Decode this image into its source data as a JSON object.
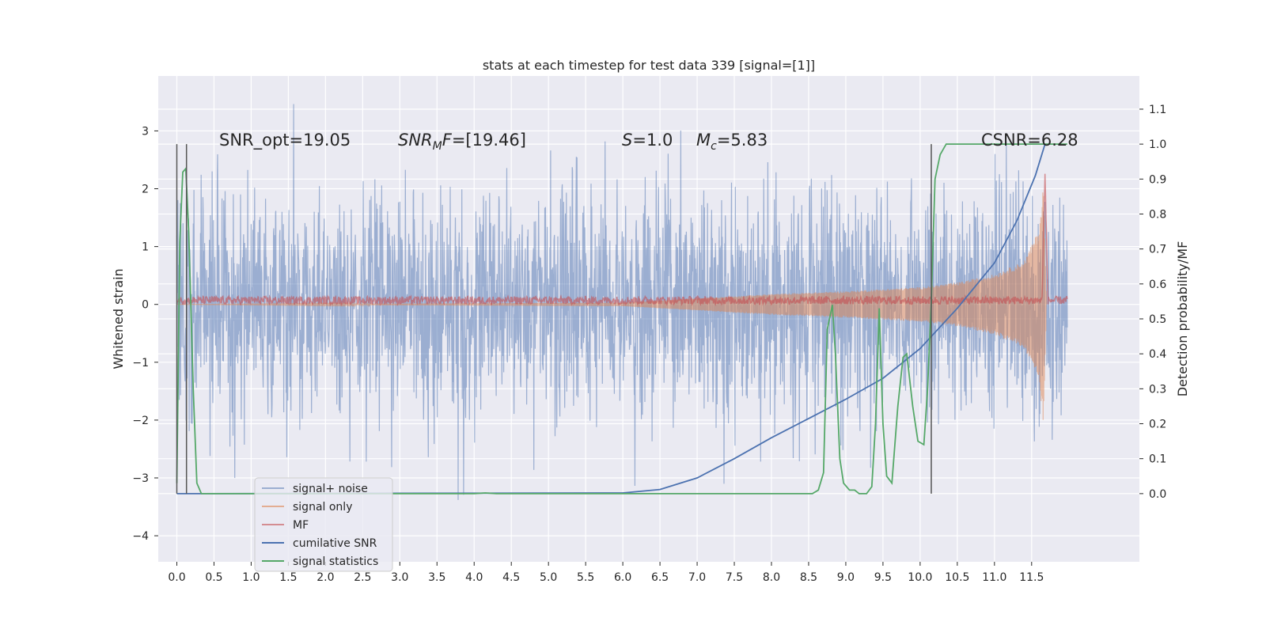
{
  "chart_data": {
    "type": "line",
    "title": "stats at each timestep for test data 339 [signal=[1]]",
    "xlabel": "",
    "ylabel": "Whitened strain",
    "y2label": "Detection probability/MF",
    "xlim": [
      -0.25,
      12.95
    ],
    "ylim": [
      -4.45,
      3.95
    ],
    "y2lim": [
      -0.195,
      1.195
    ],
    "x_ticks": [
      "0.0",
      "0.5",
      "1.0",
      "1.5",
      "2.0",
      "2.5",
      "3.0",
      "3.5",
      "4.0",
      "4.5",
      "5.0",
      "5.5",
      "6.0",
      "6.5",
      "7.0",
      "7.5",
      "8.0",
      "8.5",
      "9.0",
      "9.5",
      "10.0",
      "10.5",
      "11.0",
      "11.5"
    ],
    "y_ticks": [
      "−4",
      "−3",
      "−2",
      "−1",
      "0",
      "1",
      "2",
      "3"
    ],
    "y2_ticks": [
      "0.0",
      "0.1",
      "0.2",
      "0.3",
      "0.4",
      "0.5",
      "0.6",
      "0.7",
      "0.8",
      "0.9",
      "1.0",
      "1.1"
    ],
    "grid": true,
    "legend_position": "lower-left",
    "annotations": {
      "snr_opt": "SNR_opt=19.05",
      "snr_mf": "=[19.46]",
      "snr_mf_base": "SNR",
      "snr_mf_sub": "M",
      "snr_mf_tail": "F",
      "s_sym": "S",
      "s_val": "=1.0",
      "mc_sym": "M",
      "mc_sub": "c",
      "mc_val": "=5.83",
      "csnr": "CSNR=6.28"
    },
    "vertical_lines": [
      0.0,
      0.13,
      10.15
    ],
    "series": [
      {
        "name": "signal+ noise",
        "color": "#4c72b0",
        "alpha": 0.5,
        "axis": "left",
        "kind": "noise",
        "x_range": [
          0.0,
          11.98
        ],
        "amplitude": 1.0
      },
      {
        "name": "signal only",
        "color": "#dd8452",
        "alpha": 0.5,
        "axis": "left",
        "kind": "chirp",
        "x_range": [
          0.0,
          11.7
        ],
        "envelope": [
          [
            0.0,
            0.0
          ],
          [
            6.0,
            0.03
          ],
          [
            8.0,
            0.18
          ],
          [
            9.0,
            0.23
          ],
          [
            10.0,
            0.3
          ],
          [
            10.5,
            0.38
          ],
          [
            11.0,
            0.52
          ],
          [
            11.4,
            0.75
          ],
          [
            11.6,
            1.3
          ],
          [
            11.66,
            2.1
          ],
          [
            11.7,
            0.0
          ]
        ]
      },
      {
        "name": "MF",
        "color": "#c44e52",
        "alpha": 0.6,
        "axis": "left",
        "kind": "mf",
        "x_range": [
          0.0,
          11.98
        ],
        "center": 0.07,
        "spike_x": 11.68,
        "spike_y": 2.2
      },
      {
        "name": "cumilative SNR",
        "color": "#4c72b0",
        "alpha": 1.0,
        "axis": "right",
        "points": [
          [
            0.0,
            0.0
          ],
          [
            0.15,
            0.0
          ],
          [
            6.0,
            0.002
          ],
          [
            6.5,
            0.012
          ],
          [
            7.0,
            0.045
          ],
          [
            7.5,
            0.1
          ],
          [
            8.0,
            0.16
          ],
          [
            8.5,
            0.215
          ],
          [
            9.0,
            0.27
          ],
          [
            9.5,
            0.33
          ],
          [
            10.0,
            0.415
          ],
          [
            10.5,
            0.53
          ],
          [
            11.0,
            0.66
          ],
          [
            11.3,
            0.78
          ],
          [
            11.55,
            0.91
          ],
          [
            11.68,
            1.0
          ]
        ]
      },
      {
        "name": "signal statistics",
        "color": "#55a868",
        "alpha": 1.0,
        "axis": "right",
        "points": [
          [
            0.0,
            0.03
          ],
          [
            0.04,
            0.72
          ],
          [
            0.08,
            0.92
          ],
          [
            0.12,
            0.93
          ],
          [
            0.16,
            0.75
          ],
          [
            0.22,
            0.3
          ],
          [
            0.27,
            0.03
          ],
          [
            0.33,
            0.0
          ],
          [
            4.0,
            0.0
          ],
          [
            4.15,
            0.002
          ],
          [
            4.3,
            0.0
          ],
          [
            8.55,
            0.0
          ],
          [
            8.63,
            0.01
          ],
          [
            8.7,
            0.06
          ],
          [
            8.75,
            0.47
          ],
          [
            8.82,
            0.54
          ],
          [
            8.86,
            0.4
          ],
          [
            8.92,
            0.1
          ],
          [
            8.97,
            0.03
          ],
          [
            9.05,
            0.01
          ],
          [
            9.12,
            0.01
          ],
          [
            9.18,
            0.0
          ],
          [
            9.28,
            0.0
          ],
          [
            9.35,
            0.02
          ],
          [
            9.4,
            0.2
          ],
          [
            9.45,
            0.53
          ],
          [
            9.5,
            0.2
          ],
          [
            9.55,
            0.05
          ],
          [
            9.62,
            0.03
          ],
          [
            9.7,
            0.25
          ],
          [
            9.77,
            0.39
          ],
          [
            9.82,
            0.4
          ],
          [
            9.9,
            0.25
          ],
          [
            9.97,
            0.15
          ],
          [
            10.05,
            0.14
          ],
          [
            10.1,
            0.3
          ],
          [
            10.15,
            0.55
          ],
          [
            10.2,
            0.9
          ],
          [
            10.27,
            0.97
          ],
          [
            10.35,
            1.0
          ],
          [
            11.98,
            1.0
          ]
        ]
      }
    ]
  }
}
